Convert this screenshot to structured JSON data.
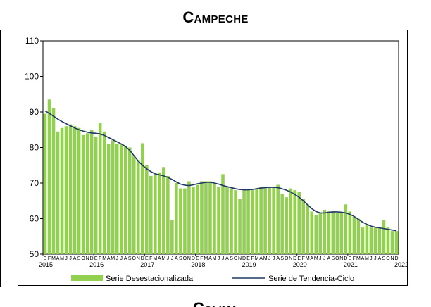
{
  "page": {
    "title": "Campeche",
    "next_title": "Colima"
  },
  "chart_data": {
    "type": "bar",
    "title": "Campeche",
    "ylim": [
      50,
      110
    ],
    "yticks": [
      50,
      60,
      70,
      80,
      90,
      100,
      110
    ],
    "month_letters": [
      "E",
      "F",
      "M",
      "A",
      "M",
      "J",
      "J",
      "A",
      "S",
      "O",
      "N",
      "D"
    ],
    "years": [
      "2015",
      "2016",
      "2017",
      "2018",
      "2019",
      "2020",
      "2021",
      "2022"
    ],
    "start": "2015-01",
    "grid": false,
    "legend": "bottom",
    "colors": {
      "bars": "#92d050",
      "trend": "#1f3864"
    },
    "series": [
      {
        "name": "Serie Desestacionalizada",
        "kind": "bar",
        "values": [
          89.5,
          93.5,
          91.0,
          84.5,
          85.5,
          86.0,
          86.5,
          86.0,
          85.5,
          83.5,
          84.0,
          85.0,
          83.0,
          87.0,
          84.5,
          81.0,
          82.0,
          81.0,
          81.0,
          80.5,
          80.0,
          77.5,
          76.5,
          81.2,
          75.0,
          72.0,
          72.5,
          73.0,
          74.5,
          72.0,
          59.5,
          70.0,
          68.5,
          68.5,
          70.5,
          69.0,
          69.5,
          70.5,
          70.5,
          70.5,
          70.0,
          69.0,
          72.5,
          69.0,
          68.5,
          68.0,
          65.5,
          68.0,
          68.0,
          68.0,
          68.5,
          69.0,
          68.5,
          69.0,
          69.0,
          69.5,
          67.0,
          66.0,
          68.5,
          68.0,
          67.5,
          65.5,
          64.0,
          62.0,
          61.0,
          61.5,
          62.5,
          62.0,
          62.0,
          61.5,
          61.5,
          64.0,
          62.0,
          60.5,
          60.0,
          57.5,
          58.5,
          57.5,
          57.5,
          57.5,
          59.5,
          57.5,
          56.5,
          56.5
        ]
      },
      {
        "name": "Serie de Tendencia-Ciclo",
        "kind": "line",
        "values": [
          90.3,
          89.6,
          88.8,
          88.0,
          87.3,
          86.7,
          86.1,
          85.5,
          85.0,
          84.6,
          84.3,
          84.1,
          84.0,
          83.8,
          83.4,
          82.8,
          82.2,
          81.6,
          81.0,
          80.3,
          79.2,
          77.7,
          76.2,
          75.0,
          74.0,
          73.2,
          72.6,
          72.3,
          72.0,
          71.6,
          71.0,
          70.3,
          69.7,
          69.4,
          69.3,
          69.5,
          69.8,
          70.0,
          70.2,
          70.2,
          70.0,
          69.7,
          69.3,
          69.0,
          68.7,
          68.4,
          68.2,
          68.1,
          68.1,
          68.2,
          68.4,
          68.6,
          68.7,
          68.8,
          68.8,
          68.7,
          68.4,
          68.0,
          67.5,
          66.8,
          66.0,
          65.0,
          63.9,
          62.8,
          62.0,
          61.6,
          61.6,
          61.8,
          61.9,
          61.9,
          61.8,
          61.6,
          61.2,
          60.6,
          59.8,
          59.0,
          58.4,
          57.9,
          57.6,
          57.4,
          57.2,
          57.0,
          56.8,
          56.6
        ]
      }
    ]
  }
}
